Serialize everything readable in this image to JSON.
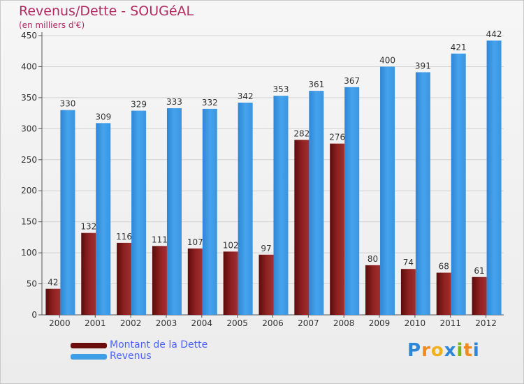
{
  "header": {
    "title": "Revenus/Dette - SOUGéAL",
    "subtitle": "(en milliers d'€)"
  },
  "chart_data": {
    "type": "bar",
    "categories": [
      "2000",
      "2001",
      "2002",
      "2003",
      "2004",
      "2005",
      "2006",
      "2007",
      "2008",
      "2009",
      "2010",
      "2011",
      "2012"
    ],
    "series": [
      {
        "name": "Montant de la Dette",
        "color": "#8b1a1a",
        "values": [
          42,
          132,
          116,
          111,
          107,
          102,
          97,
          282,
          276,
          80,
          74,
          68,
          61
        ]
      },
      {
        "name": "Revenus",
        "color": "#3f9fe6",
        "values": [
          330,
          309,
          329,
          333,
          332,
          342,
          353,
          361,
          367,
          400,
          391,
          421,
          442
        ]
      }
    ],
    "yticks": [
      0,
      50,
      100,
      150,
      200,
      250,
      300,
      350,
      400,
      450
    ],
    "ylim": [
      0,
      450
    ],
    "grid": true,
    "legend_position": "bottom-left"
  },
  "legend": {
    "items": [
      {
        "label": "Montant de la Dette",
        "color": "#6b0d0d"
      },
      {
        "label": "Revenus",
        "color": "#3f9fe6"
      }
    ]
  },
  "logo": {
    "text": "Proxiti",
    "letters": [
      {
        "ch": "P",
        "color": "#2d86d6"
      },
      {
        "ch": "r",
        "color": "#f08a1c"
      },
      {
        "ch": "o",
        "color": "#f0b21c"
      },
      {
        "ch": "x",
        "color": "#2d86d6"
      },
      {
        "ch": "i",
        "color": "#7ab51d"
      },
      {
        "ch": "t",
        "color": "#f08a1c"
      },
      {
        "ch": "i",
        "color": "#2d86d6"
      }
    ]
  }
}
